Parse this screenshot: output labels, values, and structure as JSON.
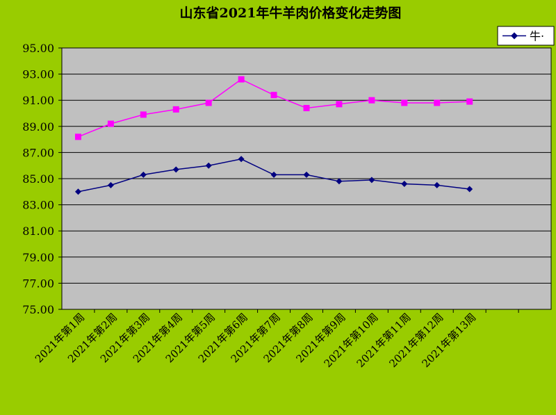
{
  "chart_data": {
    "type": "line",
    "title": "山东省2021年牛羊肉价格变化走势图",
    "xlabel": "",
    "ylabel": "",
    "categories": [
      "2021年第1周",
      "2021年第2周",
      "2021年第3周",
      "2021年第4周",
      "2021年第5周",
      "2021年第6周",
      "2021年第7周",
      "2021年第8周",
      "2021年第9周",
      "2021年第10周",
      "2021年第11周",
      "2021年第12周",
      "2021年第13周"
    ],
    "category_slots": 15,
    "ylim": [
      75,
      95
    ],
    "yticks": [
      "75.00",
      "77.00",
      "79.00",
      "81.00",
      "83.00",
      "85.00",
      "87.00",
      "89.00",
      "91.00",
      "93.00",
      "95.00"
    ],
    "grid": "horizontal",
    "legend_position": "top-right",
    "series": [
      {
        "name": "牛·",
        "color": "#000080",
        "marker": "diamond",
        "values": [
          84.0,
          84.5,
          85.3,
          85.7,
          86.0,
          86.5,
          85.3,
          85.3,
          84.8,
          84.9,
          84.6,
          84.5,
          84.2
        ]
      },
      {
        "color": "#ff00ff",
        "marker": "square",
        "values": [
          88.2,
          89.2,
          89.9,
          90.3,
          90.8,
          92.6,
          91.4,
          90.4,
          90.7,
          91.0,
          90.8,
          90.8,
          90.9
        ]
      }
    ],
    "colors": {
      "background": "#99cc00",
      "plot_area": "#c0c0c0",
      "gridline": "#000000"
    }
  }
}
